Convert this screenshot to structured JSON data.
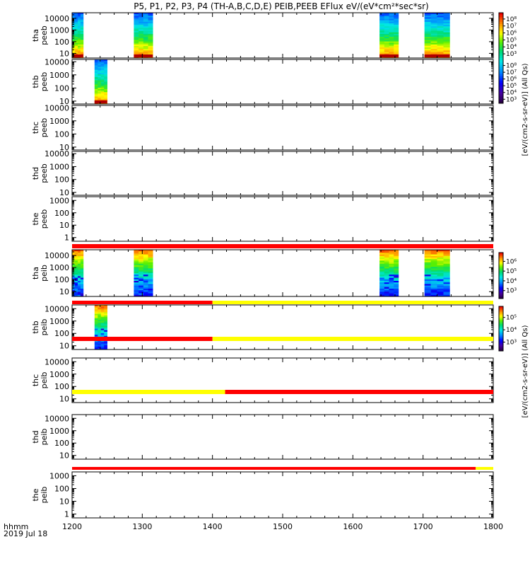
{
  "chart_data": {
    "type": "heatmap",
    "title": "P5, P1, P2, P3, P4 (TH-A,B,C,D,E) PEIB,PEEB EFlux eV/(eV*cm²*sec*sr)",
    "x_range": [
      1200,
      1800
    ],
    "x_ticks": [
      "1200",
      "1300",
      "1400",
      "1500",
      "1600",
      "1700",
      "1800"
    ],
    "x_label_lines": [
      "hhmm",
      "2019 Jul 18"
    ],
    "y_scale": "log",
    "panels": [
      {
        "id": "tha-peeb",
        "ylabel": [
          "tha",
          "peeb"
        ],
        "ylim": [
          4,
          30000
        ],
        "yticks": [
          "10",
          "100",
          "1000",
          "10000"
        ],
        "kind": "electron",
        "intervals": [
          [
            1200,
            1216
          ],
          [
            1288,
            1315
          ],
          [
            1638,
            1665
          ],
          [
            1702,
            1738
          ]
        ],
        "mode_bar": []
      },
      {
        "id": "thb-peeb",
        "ylabel": [
          "thb",
          "peeb"
        ],
        "ylim": [
          6,
          15000
        ],
        "yticks": [
          "10",
          "100",
          "1000",
          "10000"
        ],
        "kind": "electron",
        "intervals": [
          [
            1232,
            1250
          ]
        ],
        "mode_bar": []
      },
      {
        "id": "thc-peeb",
        "ylabel": [
          "thc",
          "peeb"
        ],
        "ylim": [
          6,
          15000
        ],
        "yticks": [
          "10",
          "100",
          "1000",
          "10000"
        ],
        "kind": "none",
        "intervals": [],
        "mode_bar": []
      },
      {
        "id": "thd-peeb",
        "ylabel": [
          "thd",
          "peeb"
        ],
        "ylim": [
          6,
          15000
        ],
        "yticks": [
          "10",
          "100",
          "1000",
          "10000"
        ],
        "kind": "none",
        "intervals": [],
        "mode_bar": []
      },
      {
        "id": "the-peeb",
        "ylabel": [
          "the",
          "peeb"
        ],
        "ylim": [
          0.5,
          2000
        ],
        "yticks": [
          "1",
          "10",
          "100",
          "1000"
        ],
        "kind": "none",
        "intervals": [],
        "mode_bar": [
          [
            1200,
            1800,
            "#ff0000"
          ]
        ]
      },
      {
        "id": "tha-peib",
        "ylabel": [
          "tha",
          "peib"
        ],
        "ylim": [
          4,
          30000
        ],
        "yticks": [
          "10",
          "100",
          "1000",
          "10000"
        ],
        "kind": "ion",
        "intervals": [
          [
            1200,
            1216
          ],
          [
            1288,
            1315
          ],
          [
            1638,
            1665
          ],
          [
            1702,
            1738
          ]
        ],
        "mode_bar": [
          [
            1200,
            1400,
            "#ff0000"
          ],
          [
            1400,
            1800,
            "#ffff00"
          ]
        ]
      },
      {
        "id": "thb-peib",
        "ylabel": [
          "thb",
          "peib"
        ],
        "ylim": [
          5,
          20000
        ],
        "yticks": [
          "10",
          "100",
          "1000",
          "10000"
        ],
        "kind": "ion",
        "intervals": [
          [
            1232,
            1250
          ]
        ],
        "mode_bar": [
          [
            1200,
            1400,
            "#ff0000"
          ],
          [
            1400,
            1800,
            "#ffff00"
          ]
        ]
      },
      {
        "id": "thc-peib",
        "ylabel": [
          "thc",
          "peib"
        ],
        "ylim": [
          5,
          20000
        ],
        "yticks": [
          "10",
          "100",
          "1000",
          "10000"
        ],
        "kind": "none",
        "intervals": [],
        "mode_bar": [
          [
            1200,
            1418,
            "#ffff00"
          ],
          [
            1418,
            1800,
            "#ff0000"
          ]
        ]
      },
      {
        "id": "thd-peib",
        "ylabel": [
          "thd",
          "peib"
        ],
        "ylim": [
          5,
          20000
        ],
        "yticks": [
          "10",
          "100",
          "1000",
          "10000"
        ],
        "kind": "none",
        "intervals": [],
        "mode_bar": [
          [
            1200,
            1775,
            "#ff0000"
          ],
          [
            1775,
            1800,
            "#ffff00"
          ]
        ]
      },
      {
        "id": "the-peib",
        "ylabel": [
          "the",
          "peib"
        ],
        "ylim": [
          0.5,
          2000
        ],
        "yticks": [
          "1",
          "10",
          "100",
          "1000"
        ],
        "kind": "none",
        "intervals": [],
        "mode_bar": []
      }
    ],
    "colorbars": [
      {
        "id": "colorbar-peeb",
        "label": "[eV/(cm2-s-sr-eV)] (All Qs)",
        "ticks": [
          "10³",
          "10⁴",
          "10⁵",
          "10⁶",
          "10⁷",
          "10⁸"
        ],
        "ticks_secondary": [
          "10³",
          "10⁴",
          "10⁵",
          "10⁶",
          "10⁷",
          "10⁸"
        ]
      },
      {
        "id": "colorbar-peib",
        "label": "[eV/(cm2-s-sr-eV)] (All Qs)",
        "ticks": [
          "10³",
          "10⁴",
          "10⁵",
          "10⁶"
        ],
        "ticks_secondary": [
          "10³",
          "10⁴",
          "10⁵"
        ]
      }
    ]
  }
}
